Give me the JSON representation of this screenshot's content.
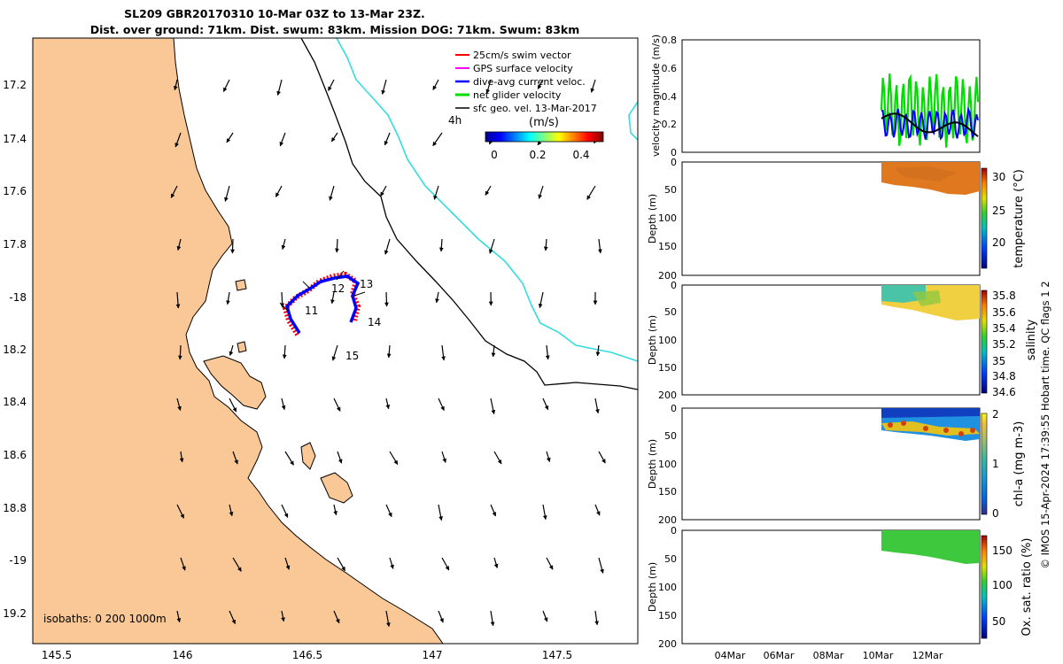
{
  "title": {
    "line1": "SL209 GBR20170310 10-Mar 03Z to 13-Mar 23Z.",
    "line2": "Dist. over ground: 71km. Dist. swum: 83km. Mission DOG: 71km. Swum: 83km"
  },
  "map": {
    "lon_ticks": [
      "145.5",
      "146",
      "146.5",
      "147",
      "147.5"
    ],
    "lat_ticks": [
      "17.2",
      "17.4",
      "17.6",
      "17.8",
      "-18",
      "18.2",
      "18.4",
      "18.6",
      "18.8",
      "-19",
      "19.2"
    ],
    "legend": [
      {
        "label": "25cm/s swim vector",
        "color": "#ff0000"
      },
      {
        "label": "GPS surface velocity",
        "color": "#ff00ff"
      },
      {
        "label": "dive-avg current veloc.",
        "color": "#0000ff"
      },
      {
        "label": "net glider velocity",
        "color": "#00dd00"
      },
      {
        "label": "sfc geo. vel. 13-Mar-2017",
        "color": "#000000"
      }
    ],
    "time_label": "4h",
    "colorbar_title": "(m/s)",
    "colorbar_ticks": [
      "0",
      "0.2",
      "0.4"
    ],
    "isobaths_label": "isobaths: 0   200  1000m",
    "day_labels": [
      "11",
      "12",
      "13",
      "14",
      "15"
    ],
    "colors": {
      "land": "#f9c896",
      "isobath_200": "#000000",
      "isobath_1000": "#33dddd"
    }
  },
  "chart_data": [
    {
      "type": "line",
      "ylabel": "velocity magnitude (m/s)",
      "ylim": [
        0,
        0.8
      ],
      "yticks": [
        "0",
        "0.2",
        "0.4",
        "0.6",
        "0.8"
      ],
      "series": [
        {
          "color": "#00dd00"
        },
        {
          "color": "#0000ff"
        },
        {
          "color": "#000000"
        }
      ]
    },
    {
      "type": "heatmap",
      "ylabel": "Depth (m)",
      "yticks": [
        "0",
        "50",
        "100",
        "150",
        "200"
      ],
      "colorbar_label": "temperature (°C)",
      "colorbar_ticks": [
        "20",
        "25",
        "30"
      ]
    },
    {
      "type": "heatmap",
      "ylabel": "Depth (m)",
      "yticks": [
        "0",
        "50",
        "100",
        "150",
        "200"
      ],
      "colorbar_label": "salinity",
      "colorbar_ticks": [
        "34.6",
        "34.8",
        "35",
        "35.2",
        "35.4",
        "35.6",
        "35.8"
      ]
    },
    {
      "type": "heatmap",
      "ylabel": "Depth (m)",
      "yticks": [
        "0",
        "50",
        "100",
        "150",
        "200"
      ],
      "colorbar_label": "chl-a (mg m-3)",
      "colorbar_ticks": [
        "0",
        "1",
        "2"
      ]
    },
    {
      "type": "heatmap",
      "ylabel": "Depth (m)",
      "yticks": [
        "0",
        "50",
        "100",
        "150",
        "200"
      ],
      "colorbar_label": "Ox. sat. ratio (%)",
      "colorbar_ticks": [
        "50",
        "100",
        "150"
      ]
    }
  ],
  "time_ticks": [
    "04Mar",
    "06Mar",
    "08Mar",
    "10Mar",
    "12Mar"
  ],
  "footer": "© IMOS 15-Apr-2024 17:39:55 Hobart time. QC flags 1  2"
}
